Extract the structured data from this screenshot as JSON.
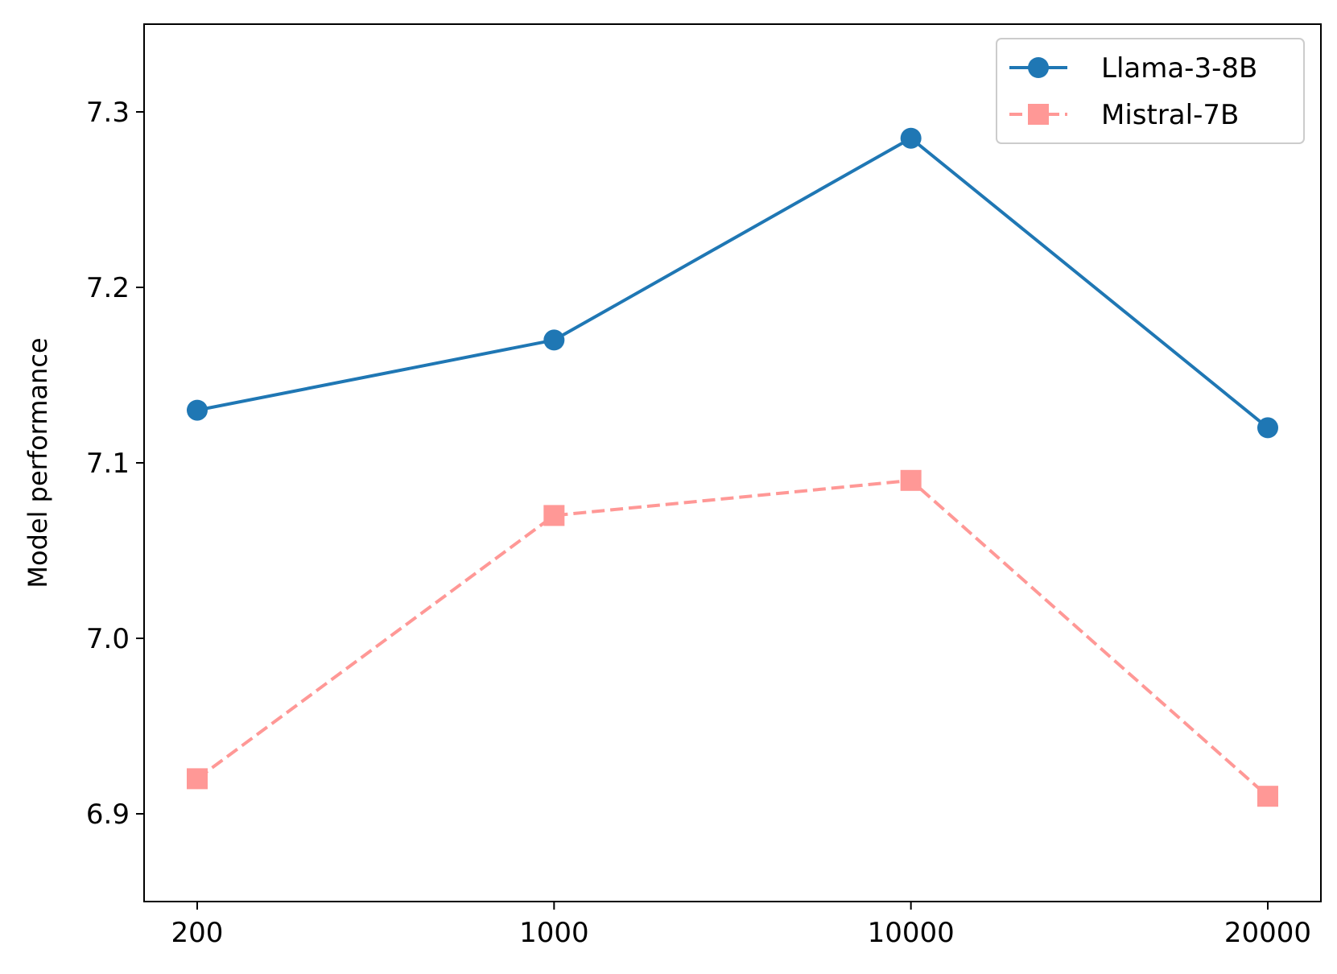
{
  "chart_data": {
    "type": "line",
    "x": [
      "200",
      "1000",
      "10000",
      "20000"
    ],
    "ylabel": "Model performance",
    "xlabel": "",
    "ylim": [
      6.85,
      7.35
    ],
    "yticks": [
      6.9,
      7.0,
      7.1,
      7.2,
      7.3
    ],
    "ytick_labels": [
      "6.9",
      "7.0",
      "7.1",
      "7.2",
      "7.3"
    ],
    "legend_position": "top-right",
    "grid": false,
    "series": [
      {
        "name": "Llama-3-8B",
        "values": [
          7.13,
          7.17,
          7.285,
          7.12
        ],
        "color": "#1f77b4",
        "marker": "circle",
        "dash": "solid"
      },
      {
        "name": "Mistral-7B",
        "values": [
          6.92,
          7.07,
          7.09,
          6.91
        ],
        "color": "#ff9896",
        "marker": "square",
        "dash": "dashed"
      }
    ]
  }
}
